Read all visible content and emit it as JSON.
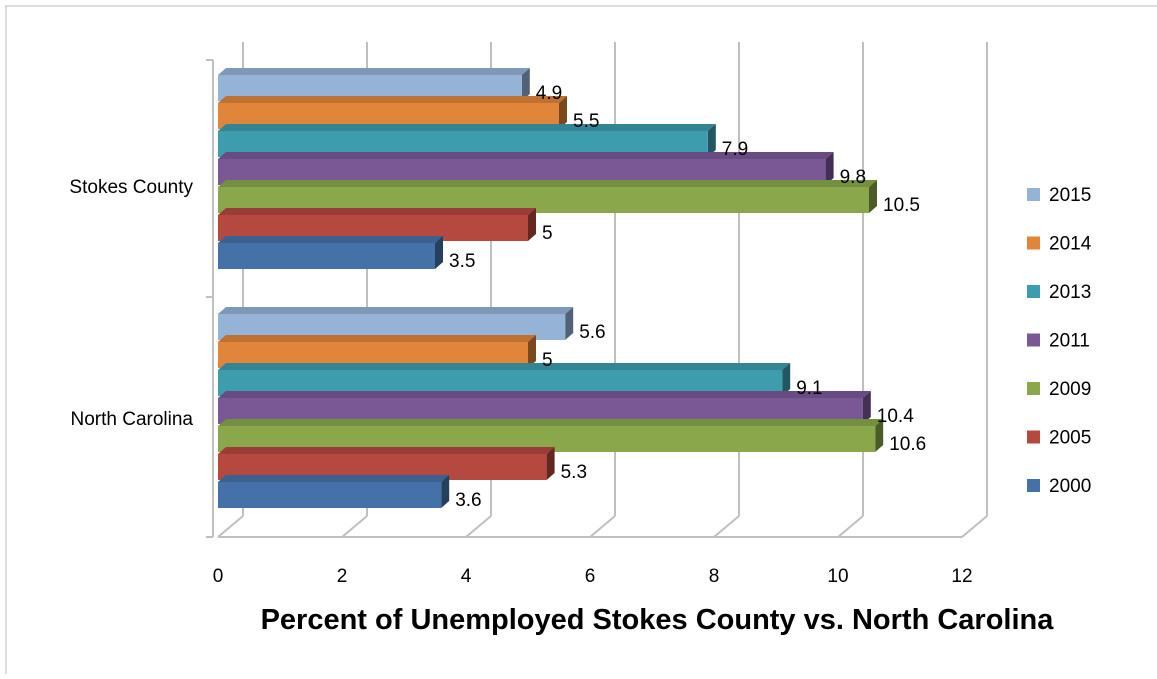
{
  "chart_data": {
    "type": "bar",
    "orientation": "horizontal",
    "style": "3d-clustered",
    "title": "Percent of Unemployed Stokes County vs. North Carolina",
    "xlim": [
      0,
      12
    ],
    "x_ticks": [
      "0",
      "2",
      "4",
      "6",
      "8",
      "10",
      "12"
    ],
    "grid": true,
    "legend_position": "right",
    "categories": [
      "Stokes County",
      "North Carolina"
    ],
    "series": [
      {
        "name": "2015",
        "color": "#95B3D7",
        "values": [
          4.9,
          5.6
        ],
        "labels": [
          "4.9",
          "5.6"
        ]
      },
      {
        "name": "2014",
        "color": "#E0853A",
        "values": [
          5.5,
          5.0
        ],
        "labels": [
          "5.5",
          "5"
        ]
      },
      {
        "name": "2013",
        "color": "#3D9CAE",
        "values": [
          7.9,
          9.1
        ],
        "labels": [
          "7.9",
          "9.1"
        ]
      },
      {
        "name": "2011",
        "color": "#7A5896",
        "values": [
          9.8,
          10.4
        ],
        "labels": [
          "9.8",
          "10.4"
        ]
      },
      {
        "name": "2009",
        "color": "#8AA84B",
        "values": [
          10.5,
          10.6
        ],
        "labels": [
          "10.5",
          "10.6"
        ]
      },
      {
        "name": "2005",
        "color": "#B5483F",
        "values": [
          5.0,
          5.3
        ],
        "labels": [
          "5",
          "5.3"
        ]
      },
      {
        "name": "2000",
        "color": "#4472A8",
        "values": [
          3.5,
          3.6
        ],
        "labels": [
          "3.5",
          "3.6"
        ]
      }
    ]
  }
}
